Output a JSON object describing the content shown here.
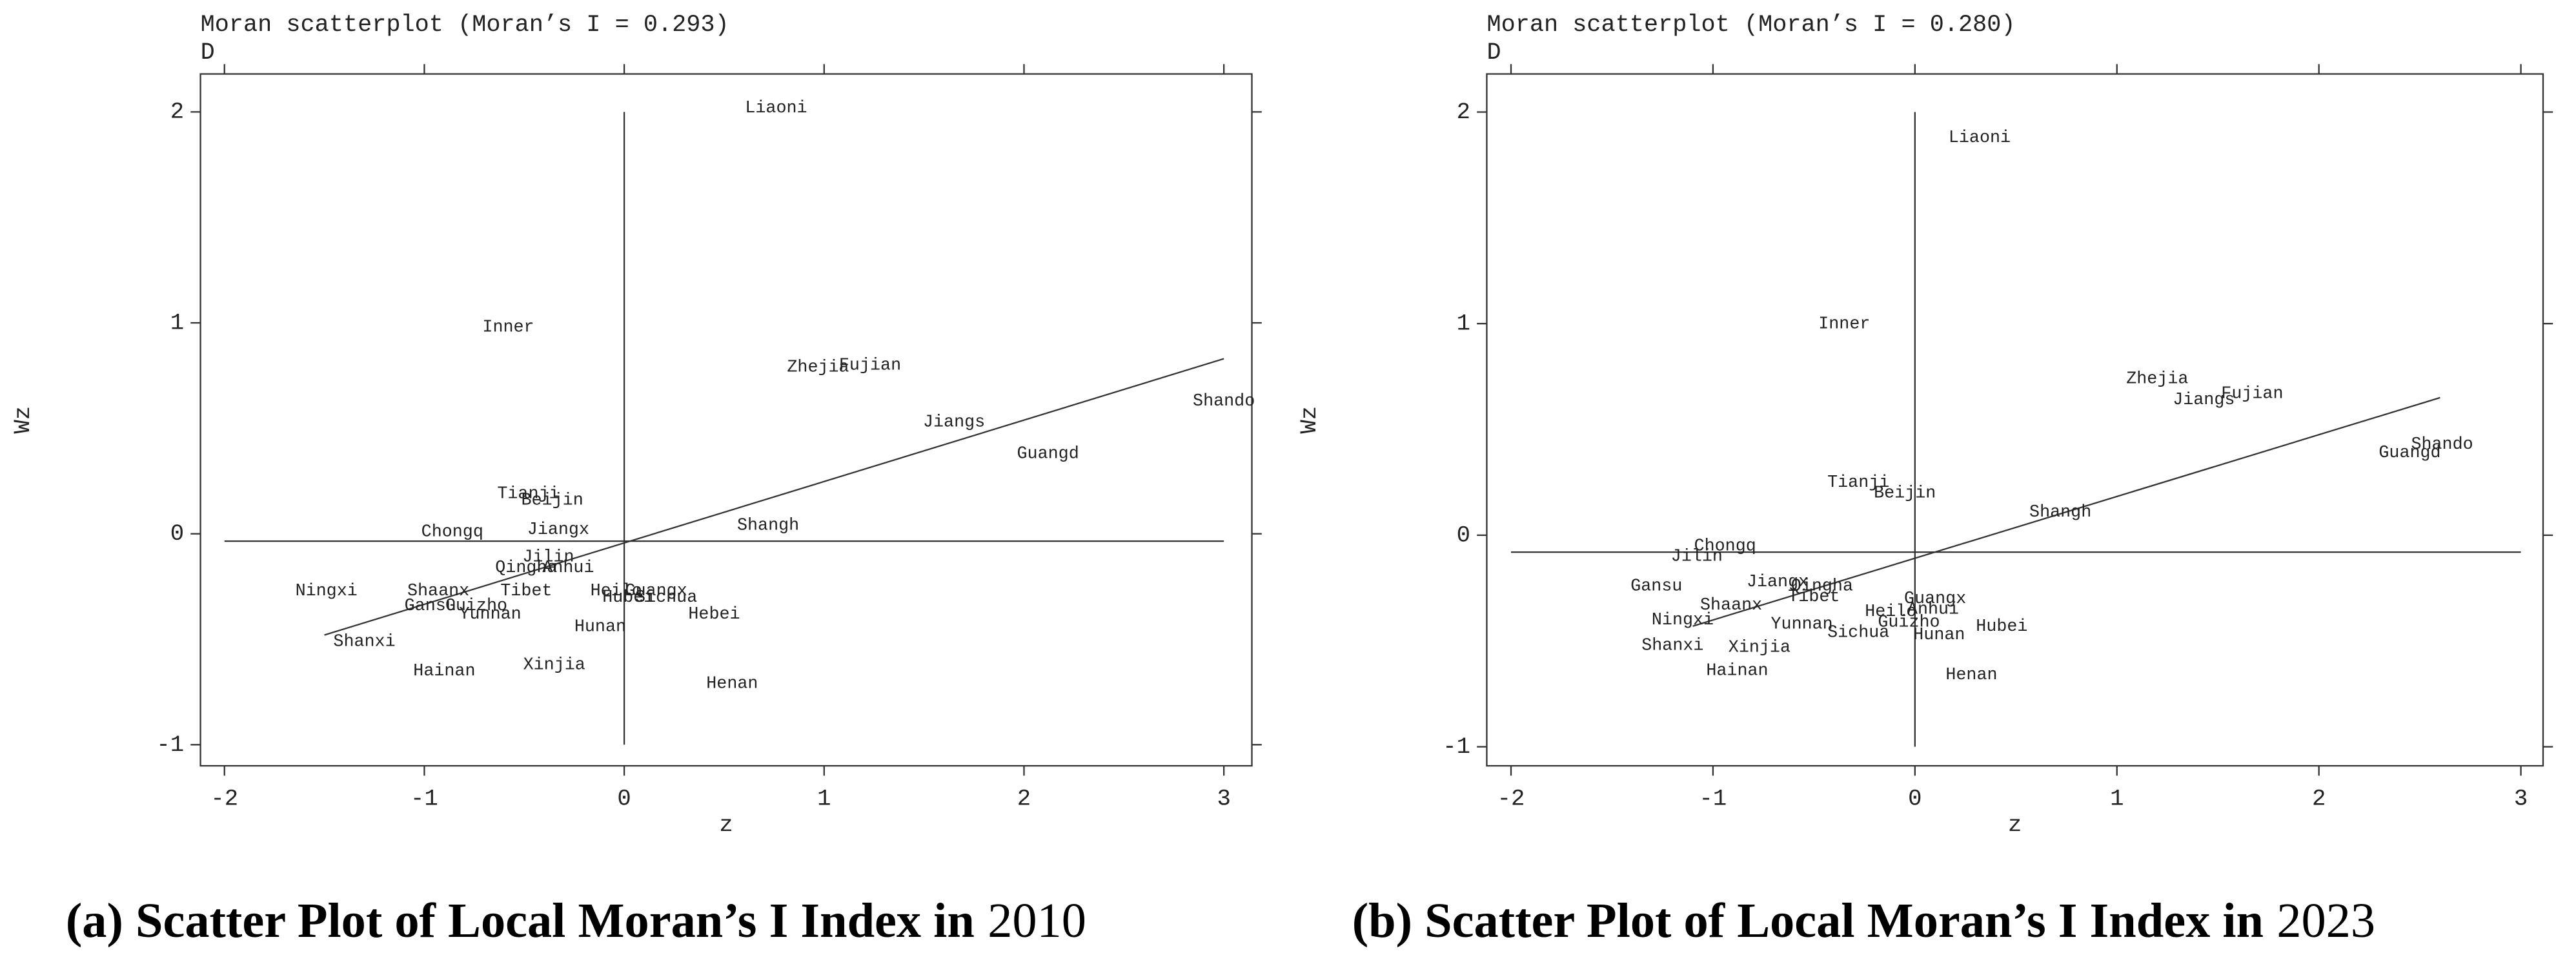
{
  "chart_data": [
    {
      "type": "scatter",
      "title": "Moran scatterplot (Moran’s I = 0.293)",
      "subtitle": "D",
      "xlabel": "z",
      "ylabel": "Wz",
      "caption": "(a) Scatter Plot of Local Moran’s I Index in",
      "caption_year": "2010",
      "xlim": [
        -2.12,
        3.14
      ],
      "ylim": [
        -1.1,
        2.18
      ],
      "xticks": [
        -2,
        -1,
        0,
        1,
        2,
        3
      ],
      "yticks": [
        -1,
        0,
        1,
        2
      ],
      "labels": [
        "Liaoni",
        "Inner",
        "Zhejia",
        "Fujian",
        "Jiangs",
        "Shando",
        "Guangd",
        "Tianji",
        "Beijin",
        "Chongq",
        "Jiangx",
        "Shangh",
        "Jilin",
        "Qingha",
        "Anhui",
        "Ningxi",
        "Shaanx",
        "Tibet",
        "Heilo",
        "Guangx",
        "Hubei",
        "Sichua",
        "Gansu",
        "Guizho",
        "Yunnan",
        "Hebei",
        "Hunan",
        "Shanxi",
        "Hainan",
        "Xinjia",
        "Henan"
      ],
      "x": [
        0.76,
        -0.58,
        0.97,
        1.23,
        1.65,
        3.0,
        2.12,
        -0.48,
        -0.36,
        -0.86,
        -0.33,
        0.72,
        -0.38,
        -0.49,
        -0.28,
        -1.49,
        -0.93,
        -0.49,
        -0.04,
        0.16,
        0.02,
        0.21,
        -0.97,
        -0.74,
        -0.67,
        0.45,
        -0.12,
        -1.3,
        -0.9,
        -0.35,
        0.54
      ],
      "y": [
        2.02,
        0.98,
        0.79,
        0.8,
        0.53,
        0.63,
        0.38,
        0.19,
        0.16,
        0.01,
        0.02,
        0.04,
        -0.11,
        -0.16,
        -0.16,
        -0.27,
        -0.27,
        -0.27,
        -0.27,
        -0.27,
        -0.3,
        -0.3,
        -0.34,
        -0.34,
        -0.38,
        -0.38,
        -0.44,
        -0.51,
        -0.65,
        -0.62,
        -0.71
      ],
      "lines": [
        {
          "x": [
            -2,
            3
          ],
          "y": [
            -0.035,
            -0.035
          ]
        },
        {
          "x": [
            0,
            0
          ],
          "y": [
            -1,
            2
          ]
        },
        {
          "x": [
            -1.5,
            3
          ],
          "y": [
            -0.48,
            0.83
          ]
        }
      ]
    },
    {
      "type": "scatter",
      "title": "Moran scatterplot (Moran’s I = 0.280)",
      "subtitle": "D",
      "xlabel": "z",
      "ylabel": "Wz",
      "caption": "(b) Scatter Plot of Local Moran’s I Index in",
      "caption_year": "2023",
      "xlim": [
        -2.12,
        3.11
      ],
      "ylim": [
        -1.09,
        2.18
      ],
      "xticks": [
        -2,
        -1,
        0,
        1,
        2,
        3
      ],
      "yticks": [
        -1,
        0,
        1,
        2
      ],
      "labels": [
        "Liaoni",
        "Inner",
        "Zhejia",
        "Jiangs",
        "Fujian",
        "Shando",
        "Guangd",
        "Tianji",
        "Beijin",
        "Shangh",
        "Chongq",
        "Jilin",
        "Gansu",
        "Jiangx",
        "Qingha",
        "Tibet",
        "Guangx",
        "Shaanx",
        "Heilo",
        "Anhui",
        "Ningxi",
        "Yunnan",
        "Guizho",
        "Sichua",
        "Hunan",
        "Hubei",
        "Shanxi",
        "Xinjia",
        "Hainan",
        "Henan"
      ],
      "x": [
        0.32,
        -0.35,
        1.2,
        1.43,
        1.67,
        2.61,
        2.45,
        -0.28,
        -0.05,
        0.72,
        -0.94,
        -1.08,
        -1.28,
        -0.68,
        -0.46,
        -0.5,
        0.1,
        -0.91,
        -0.12,
        0.09,
        -1.15,
        -0.56,
        -0.03,
        -0.28,
        0.12,
        0.43,
        -1.2,
        -0.77,
        -0.88,
        0.28
      ],
      "y": [
        1.88,
        1.0,
        0.74,
        0.64,
        0.67,
        0.43,
        0.39,
        0.25,
        0.2,
        0.11,
        -0.05,
        -0.1,
        -0.24,
        -0.22,
        -0.24,
        -0.29,
        -0.3,
        -0.33,
        -0.36,
        -0.35,
        -0.4,
        -0.42,
        -0.41,
        -0.46,
        -0.47,
        -0.43,
        -0.52,
        -0.53,
        -0.64,
        -0.66
      ],
      "lines": [
        {
          "x": [
            -2,
            3
          ],
          "y": [
            -0.08,
            -0.08
          ]
        },
        {
          "x": [
            0,
            0
          ],
          "y": [
            -1,
            2
          ]
        },
        {
          "x": [
            -1.1,
            2.6
          ],
          "y": [
            -0.43,
            0.65
          ]
        }
      ]
    }
  ]
}
